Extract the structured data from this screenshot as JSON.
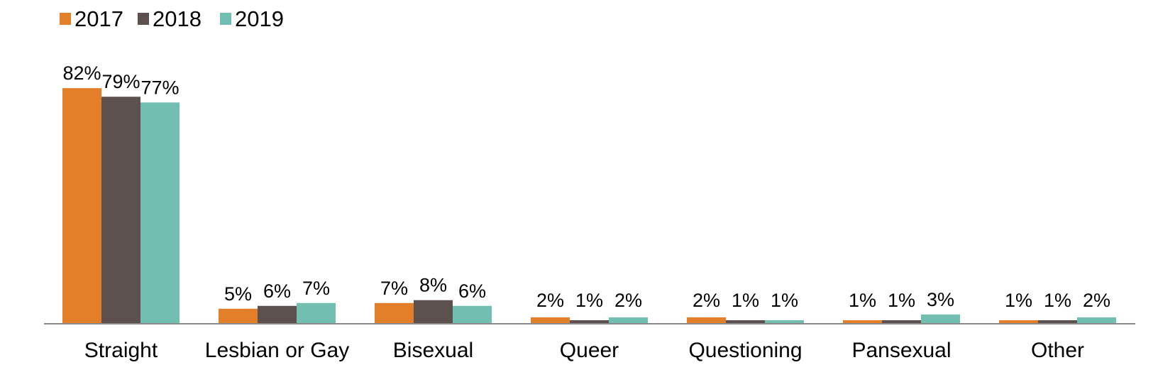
{
  "chart_data": {
    "type": "bar",
    "title": "",
    "xlabel": "",
    "ylabel": "",
    "ylim": [
      0,
      100
    ],
    "grid": false,
    "legend_position": "top-left",
    "categories": [
      "Straight",
      "Lesbian or Gay",
      "Bisexual",
      "Queer",
      "Questioning",
      "Pansexual",
      "Other"
    ],
    "series": [
      {
        "name": "2017",
        "color": "#e37f28",
        "values": [
          82,
          5,
          7,
          2,
          2,
          1,
          1
        ],
        "labels": [
          "82%",
          "5%",
          "7%",
          "2%",
          "2%",
          "1%",
          "1%"
        ]
      },
      {
        "name": "2018",
        "color": "#5d514f",
        "values": [
          79,
          6,
          8,
          1,
          1,
          1,
          1
        ],
        "labels": [
          "79%",
          "6%",
          "8%",
          "1%",
          "1%",
          "1%",
          "1%"
        ]
      },
      {
        "name": "2019",
        "color": "#72bfb1",
        "values": [
          77,
          7,
          6,
          2,
          1,
          3,
          2
        ],
        "labels": [
          "77%",
          "7%",
          "6%",
          "2%",
          "1%",
          "3%",
          "2%"
        ]
      }
    ]
  }
}
